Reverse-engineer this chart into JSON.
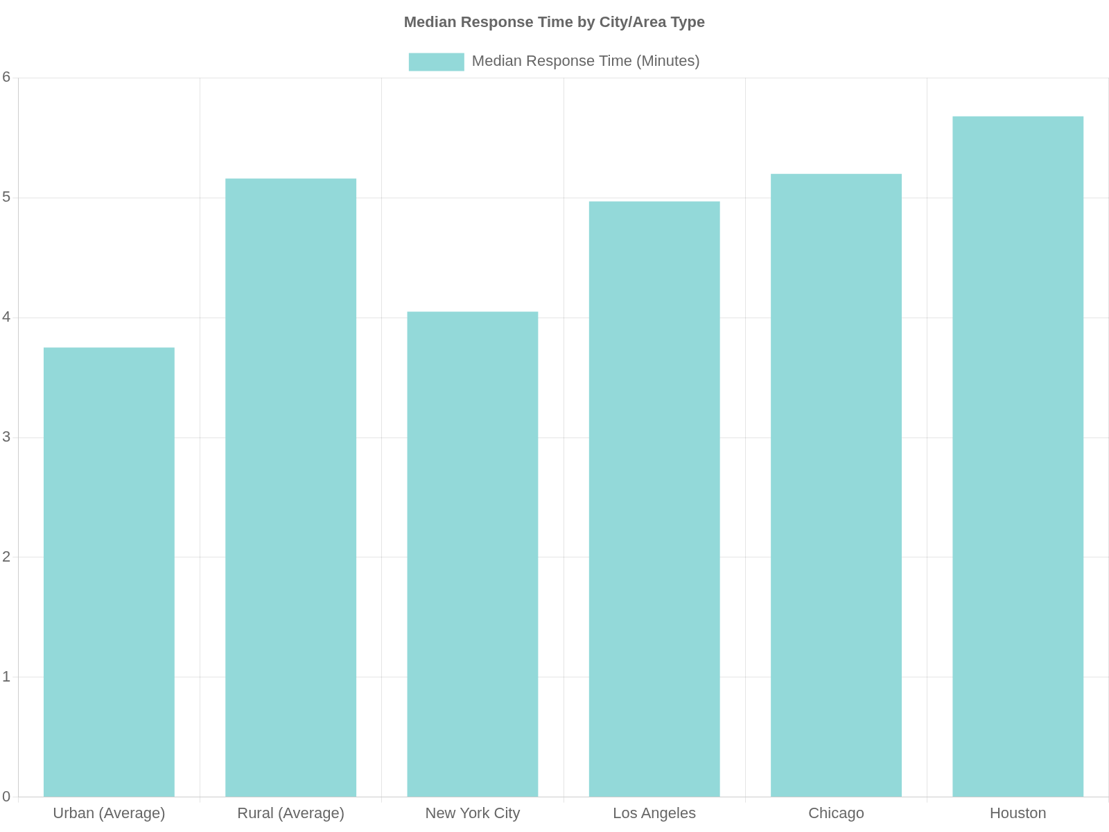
{
  "chart_data": {
    "type": "bar",
    "title": "Median Response Time by City/Area Type",
    "categories": [
      "Urban (Average)",
      "Rural (Average)",
      "New York City",
      "Los Angeles",
      "Chicago",
      "Houston"
    ],
    "series": [
      {
        "name": "Median Response Time (Minutes)",
        "color": "#93d9d9",
        "values": [
          3.75,
          5.16,
          4.05,
          4.97,
          5.2,
          5.68
        ]
      }
    ],
    "ylim": [
      0,
      6
    ],
    "yticks": [
      0,
      1,
      2,
      3,
      4,
      5,
      6
    ],
    "grid": true,
    "legend": "top"
  }
}
